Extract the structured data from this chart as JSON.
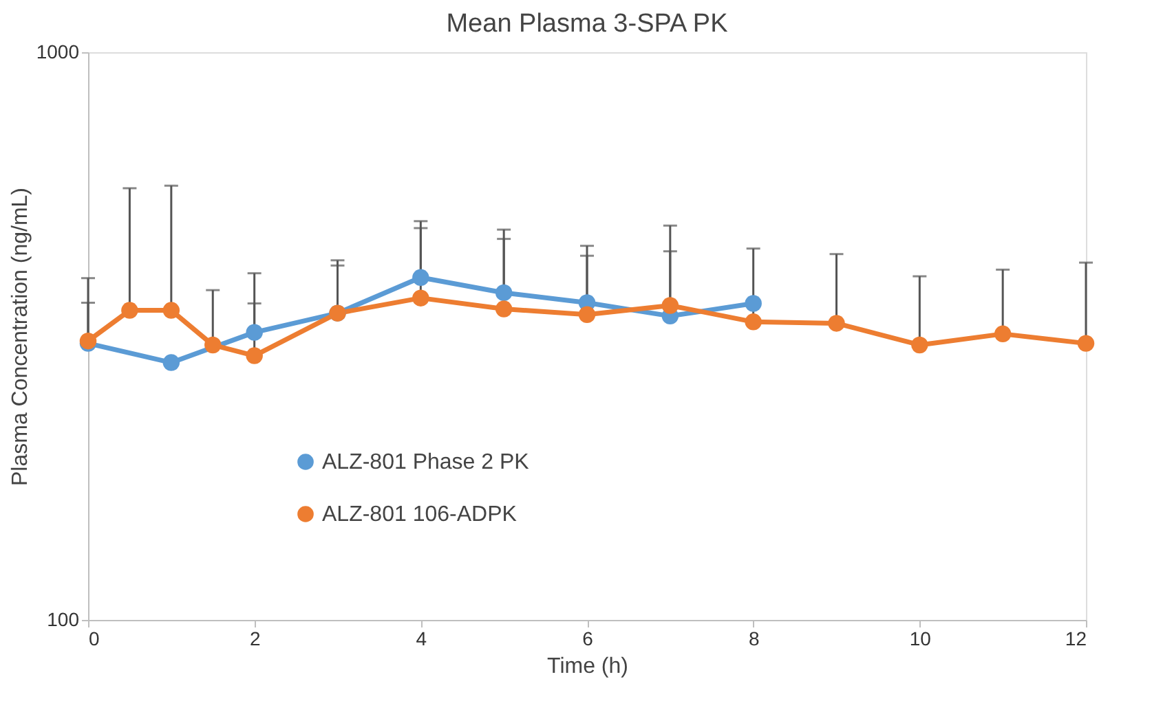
{
  "chart_data": {
    "type": "line",
    "title": "Mean Plasma 3-SPA PK",
    "xlabel": "Time (h)",
    "ylabel": "Plasma Concentration (ng/mL)",
    "log": true,
    "xlim": [
      0,
      12
    ],
    "xticks": [
      0,
      2,
      4,
      6,
      8,
      10,
      12
    ],
    "ylim": [
      100,
      1000
    ],
    "yticks": [
      100,
      1000
    ],
    "grid": false,
    "legend": "bottom left",
    "marker": "circle",
    "line_style": "solid",
    "series": [
      {
        "name": "ALZ-801 Phase 2 PK",
        "color": "#5b9bd5",
        "x": [
          0,
          1,
          2,
          3,
          4,
          5,
          6,
          7,
          8
        ],
        "values": [
          307,
          284,
          321,
          347,
          401,
          377,
          362,
          343,
          361
        ],
        "errors": [
          [
            307,
            362
          ],
          null,
          [
            321,
            361
          ],
          [
            347,
            421
          ],
          [
            401,
            490
          ],
          [
            377,
            469
          ],
          [
            362,
            438
          ],
          [
            343,
            446
          ],
          null
        ]
      },
      {
        "name": "ALZ-801 106-ADPK",
        "color": "#ed7d31",
        "x": [
          0,
          0.5,
          1,
          1.5,
          2,
          3,
          4,
          5,
          6,
          7,
          8,
          9,
          10,
          11,
          12
        ],
        "values": [
          310,
          351,
          351,
          305,
          292,
          347,
          369,
          353,
          345,
          358,
          335,
          333,
          305,
          319,
          307
        ],
        "errors": [
          [
            310,
            400
          ],
          [
            351,
            576
          ],
          [
            351,
            582
          ],
          [
            305,
            381
          ],
          [
            292,
            408
          ],
          [
            347,
            430
          ],
          [
            369,
            504
          ],
          [
            353,
            487
          ],
          [
            345,
            456
          ],
          [
            358,
            495
          ],
          [
            335,
            451
          ],
          [
            333,
            441
          ],
          [
            305,
            403
          ],
          [
            319,
            414
          ],
          [
            307,
            426
          ]
        ]
      }
    ]
  }
}
